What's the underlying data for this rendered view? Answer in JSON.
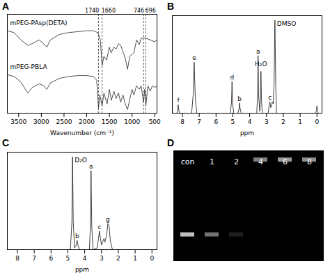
{
  "chart_data": [
    {
      "type": "line",
      "panel": "A",
      "x_label": "Wavenumber (cm⁻¹)",
      "xlim": [
        3750,
        450
      ],
      "xticks": [
        3500,
        3000,
        2500,
        2000,
        1500,
        1000,
        500
      ],
      "ylim": [
        0,
        1.08
      ],
      "tick_labels": "x",
      "grid": false,
      "annotations": [
        1740,
        1660,
        746,
        696
      ],
      "series": [
        {
          "name": "mPEG-PAsp(DETA)",
          "color": "#222222",
          "x": [
            3750,
            3600,
            3450,
            3300,
            3200,
            3050,
            2950,
            2880,
            2800,
            2600,
            2400,
            2200,
            2000,
            1850,
            1760,
            1740,
            1700,
            1660,
            1620,
            1560,
            1500,
            1460,
            1400,
            1350,
            1300,
            1250,
            1150,
            1100,
            1050,
            960,
            900,
            840,
            800,
            746,
            696,
            600,
            500,
            450
          ],
          "values": [
            0.9,
            0.88,
            0.8,
            0.74,
            0.76,
            0.8,
            0.76,
            0.72,
            0.8,
            0.86,
            0.88,
            0.89,
            0.9,
            0.9,
            0.88,
            0.86,
            0.8,
            0.52,
            0.62,
            0.58,
            0.72,
            0.66,
            0.72,
            0.7,
            0.76,
            0.74,
            0.6,
            0.48,
            0.62,
            0.66,
            0.8,
            0.75,
            0.82,
            0.82,
            0.82,
            0.8,
            0.78,
            0.8
          ]
        },
        {
          "name": "mPEG-PBLA",
          "color": "#222222",
          "x": [
            3750,
            3600,
            3450,
            3300,
            3200,
            3050,
            2950,
            2880,
            2800,
            2600,
            2400,
            2200,
            2000,
            1850,
            1780,
            1740,
            1710,
            1660,
            1620,
            1550,
            1500,
            1455,
            1400,
            1350,
            1300,
            1250,
            1200,
            1150,
            1100,
            1050,
            1000,
            960,
            900,
            840,
            800,
            746,
            720,
            696,
            650,
            600,
            550,
            500,
            450
          ],
          "values": [
            0.42,
            0.4,
            0.34,
            0.22,
            0.28,
            0.32,
            0.3,
            0.26,
            0.33,
            0.38,
            0.4,
            0.41,
            0.41,
            0.4,
            0.36,
            0.06,
            0.2,
            0.08,
            0.22,
            0.1,
            0.26,
            0.14,
            0.24,
            0.16,
            0.22,
            0.12,
            0.2,
            0.1,
            0.04,
            0.15,
            0.26,
            0.2,
            0.3,
            0.26,
            0.3,
            0.12,
            0.26,
            0.08,
            0.3,
            0.24,
            0.3,
            0.28,
            0.3
          ]
        }
      ]
    },
    {
      "type": "nmr",
      "panel": "B",
      "x_label": "ppm",
      "color": "#111111",
      "xlim": [
        8.6,
        -0.3
      ],
      "xticks": [
        8,
        7,
        6,
        5,
        4,
        3,
        2,
        1,
        0
      ],
      "ylim": [
        0,
        1.05
      ],
      "tick_labels": "x",
      "x": [
        8.6,
        8.33,
        8.28,
        8.25,
        8.22,
        8.17,
        7.45,
        7.36,
        7.3,
        7.24,
        7.15,
        5.15,
        5.08,
        5.05,
        5.02,
        4.95,
        4.7,
        4.63,
        4.6,
        4.57,
        4.5,
        3.58,
        3.53,
        3.5,
        3.47,
        3.4,
        3.36,
        3.33,
        3.3,
        3.25,
        2.9,
        2.85,
        2.8,
        2.75,
        2.7,
        2.66,
        2.6,
        2.55,
        2.5,
        2.45,
        2.4,
        0.08,
        0.03,
        0,
        -0.03,
        -0.08,
        -0.3
      ],
      "values": [
        0,
        0,
        0.04,
        0.09,
        0.04,
        0,
        0,
        0.2,
        0.55,
        0.2,
        0,
        0,
        0.12,
        0.34,
        0.12,
        0,
        0,
        0.05,
        0.11,
        0.05,
        0,
        0,
        0.2,
        0.62,
        0.2,
        0.02,
        0.15,
        0.45,
        0.15,
        0,
        0,
        0.07,
        0.12,
        0.06,
        0.08,
        0.12,
        0.1,
        0.3,
        1.0,
        0.3,
        0,
        0,
        0.03,
        0.08,
        0.03,
        0,
        0
      ],
      "peaks": [
        {
          "label": "f",
          "ppm": 8.25,
          "height": 0.09
        },
        {
          "label": "e",
          "ppm": 7.3,
          "height": 0.55
        },
        {
          "label": "d",
          "ppm": 5.05,
          "height": 0.34
        },
        {
          "label": "b",
          "ppm": 4.6,
          "height": 0.11
        },
        {
          "label": "a",
          "ppm": 3.5,
          "height": 0.62
        },
        {
          "label": "c",
          "ppm": 2.8,
          "height": 0.12
        }
      ],
      "solvent_peaks": [
        {
          "label": "H₂O",
          "ppm": 3.33,
          "height": 0.45,
          "side": "middle"
        },
        {
          "label": "DMSO",
          "ppm": 2.5,
          "height": 1.0,
          "side": "right"
        }
      ]
    },
    {
      "type": "nmr",
      "panel": "C",
      "x_label": "ppm",
      "color": "#111111",
      "xlim": [
        8.6,
        -0.3
      ],
      "xticks": [
        8,
        7,
        6,
        5,
        4,
        3,
        2,
        1,
        0
      ],
      "ylim": [
        0,
        1.05
      ],
      "tick_labels": "x",
      "x": [
        8.6,
        4.85,
        4.76,
        4.72,
        4.68,
        4.6,
        4.5,
        4.45,
        4.4,
        4.3,
        3.72,
        3.66,
        3.62,
        3.58,
        3.5,
        3.25,
        3.18,
        3.12,
        3.06,
        3.0,
        2.9,
        2.85,
        2.8,
        2.7,
        2.62,
        2.55,
        2.48,
        2.35,
        -0.3
      ],
      "values": [
        0,
        0,
        0.3,
        1.0,
        0.3,
        0.02,
        0.05,
        0.1,
        0.05,
        0,
        0,
        0.25,
        0.85,
        0.25,
        0,
        0.02,
        0.12,
        0.2,
        0.12,
        0.05,
        0.1,
        0.12,
        0.08,
        0.15,
        0.28,
        0.26,
        0.1,
        0,
        0
      ],
      "peaks": [
        {
          "label": "b",
          "ppm": 4.45,
          "height": 0.1
        },
        {
          "label": "a",
          "ppm": 3.62,
          "height": 0.85
        },
        {
          "label": "c",
          "ppm": 3.12,
          "height": 0.2
        },
        {
          "label": "g",
          "ppm": 2.62,
          "height": 0.28
        }
      ],
      "solvent_peaks": [
        {
          "label": "D₂O",
          "ppm": 4.72,
          "height": 1.0,
          "side": "right"
        }
      ]
    },
    {
      "type": "gel",
      "panel": "D",
      "color": "#ffffff",
      "categories": [
        "con",
        "1",
        "2",
        "4",
        "6",
        "8"
      ],
      "band_position": [
        0.76,
        0.76,
        0.76,
        0.08,
        0.08,
        0.08
      ],
      "band_intensity": [
        0.75,
        0.45,
        0.12,
        0.5,
        0.6,
        0.55
      ],
      "ylim": [
        0,
        1
      ],
      "tick_labels": false
    }
  ]
}
